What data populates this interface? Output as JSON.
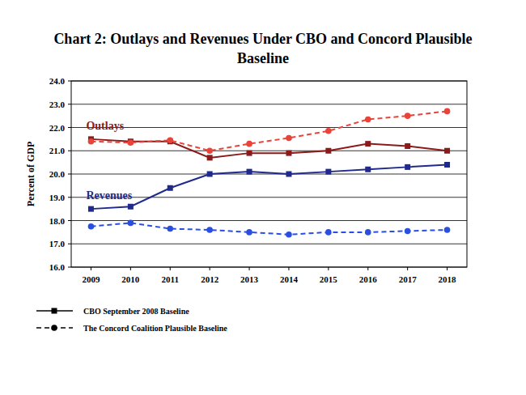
{
  "chart_data": {
    "type": "line",
    "title": "Chart 2: Outlays and Revenues Under CBO and Concord Plausible Baseline",
    "y_label": "Percent of GDP",
    "categories": [
      "2009",
      "2010",
      "2011",
      "2012",
      "2013",
      "2014",
      "2015",
      "2016",
      "2017",
      "2018"
    ],
    "series": [
      {
        "name": "CBO September 2008 Baseline",
        "color": "#8b1a1a",
        "marker": "square",
        "line_style": "solid",
        "values": [
          21.5,
          21.4,
          21.4,
          20.7,
          20.9,
          20.9,
          21.0,
          21.3,
          21.2,
          21.0
        ]
      },
      {
        "name": "CBO September 2008 Baseline",
        "color": "#1f2a8c",
        "marker": "square",
        "line_style": "solid",
        "values": [
          18.5,
          18.6,
          19.4,
          20.0,
          20.1,
          20.0,
          20.1,
          20.2,
          20.3,
          20.4
        ]
      },
      {
        "name": "The Concord Coalition Plausible Baseline",
        "color": "#e8443a",
        "marker": "circle",
        "line_style": "dashed",
        "values": [
          21.4,
          21.35,
          21.45,
          21.0,
          21.3,
          21.55,
          21.85,
          22.35,
          22.5,
          22.7
        ]
      },
      {
        "name": "The Concord Coalition Plausible Baseline",
        "color": "#2a4fe0",
        "marker": "circle",
        "line_style": "dashed",
        "values": [
          17.75,
          17.9,
          17.65,
          17.6,
          17.5,
          17.4,
          17.5,
          17.5,
          17.55,
          17.6
        ]
      }
    ],
    "annotations": [
      {
        "text": "Outlays",
        "color": "#8b1a1a"
      },
      {
        "text": "Revenues",
        "color": "#1f2a8c"
      }
    ],
    "ylim": [
      16,
      24
    ],
    "yticks": [
      {
        "value": 16,
        "label": "16.0"
      },
      {
        "value": 17,
        "label": "17.0"
      },
      {
        "value": 18,
        "label": "18.0"
      },
      {
        "value": 19,
        "label": "19.0"
      },
      {
        "value": 20,
        "label": "20.0"
      },
      {
        "value": 21,
        "label": "21.0"
      },
      {
        "value": 22,
        "label": "22.0"
      },
      {
        "value": 23,
        "label": "23.0"
      },
      {
        "value": 24,
        "label": "24.0"
      }
    ],
    "grid": true,
    "legend": "bottom-left"
  }
}
